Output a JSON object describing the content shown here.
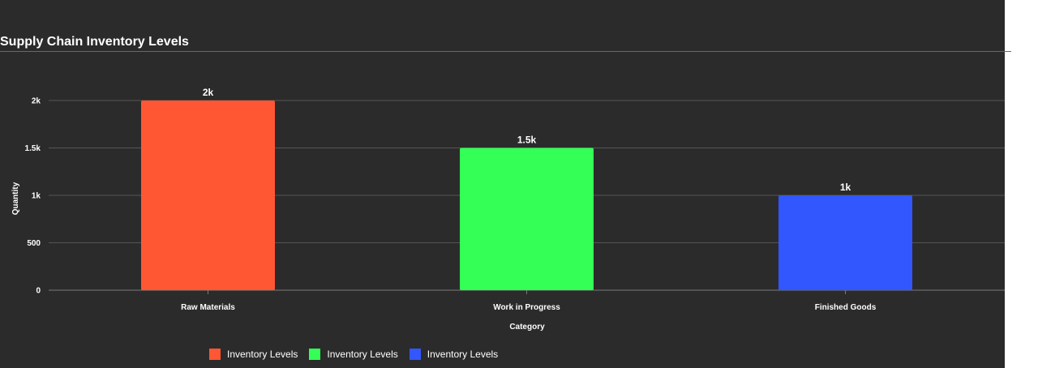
{
  "chart_data": {
    "type": "bar",
    "title": "Supply Chain Inventory Levels",
    "xlabel": "Category",
    "ylabel": "Quantity",
    "categories": [
      "Raw Materials",
      "Work in Progress",
      "Finished Goods"
    ],
    "values": [
      2000,
      1500,
      1000
    ],
    "value_labels": [
      "2k",
      "1.5k",
      "1k"
    ],
    "colors": [
      "#ff5733",
      "#33ff57",
      "#3357ff"
    ],
    "ylim": [
      0,
      2000
    ],
    "yticks": [
      0,
      500,
      1000,
      1500,
      2000
    ],
    "ytick_labels": [
      "0",
      "500",
      "1k",
      "1.5k",
      "2k"
    ],
    "grid": true,
    "legend": {
      "placement": "bottom",
      "entries": [
        "Inventory Levels",
        "Inventory Levels",
        "Inventory Levels"
      ]
    }
  },
  "theme": {
    "background": "#2b2b2b",
    "gridline": "#555555",
    "text": "#ffffff"
  }
}
